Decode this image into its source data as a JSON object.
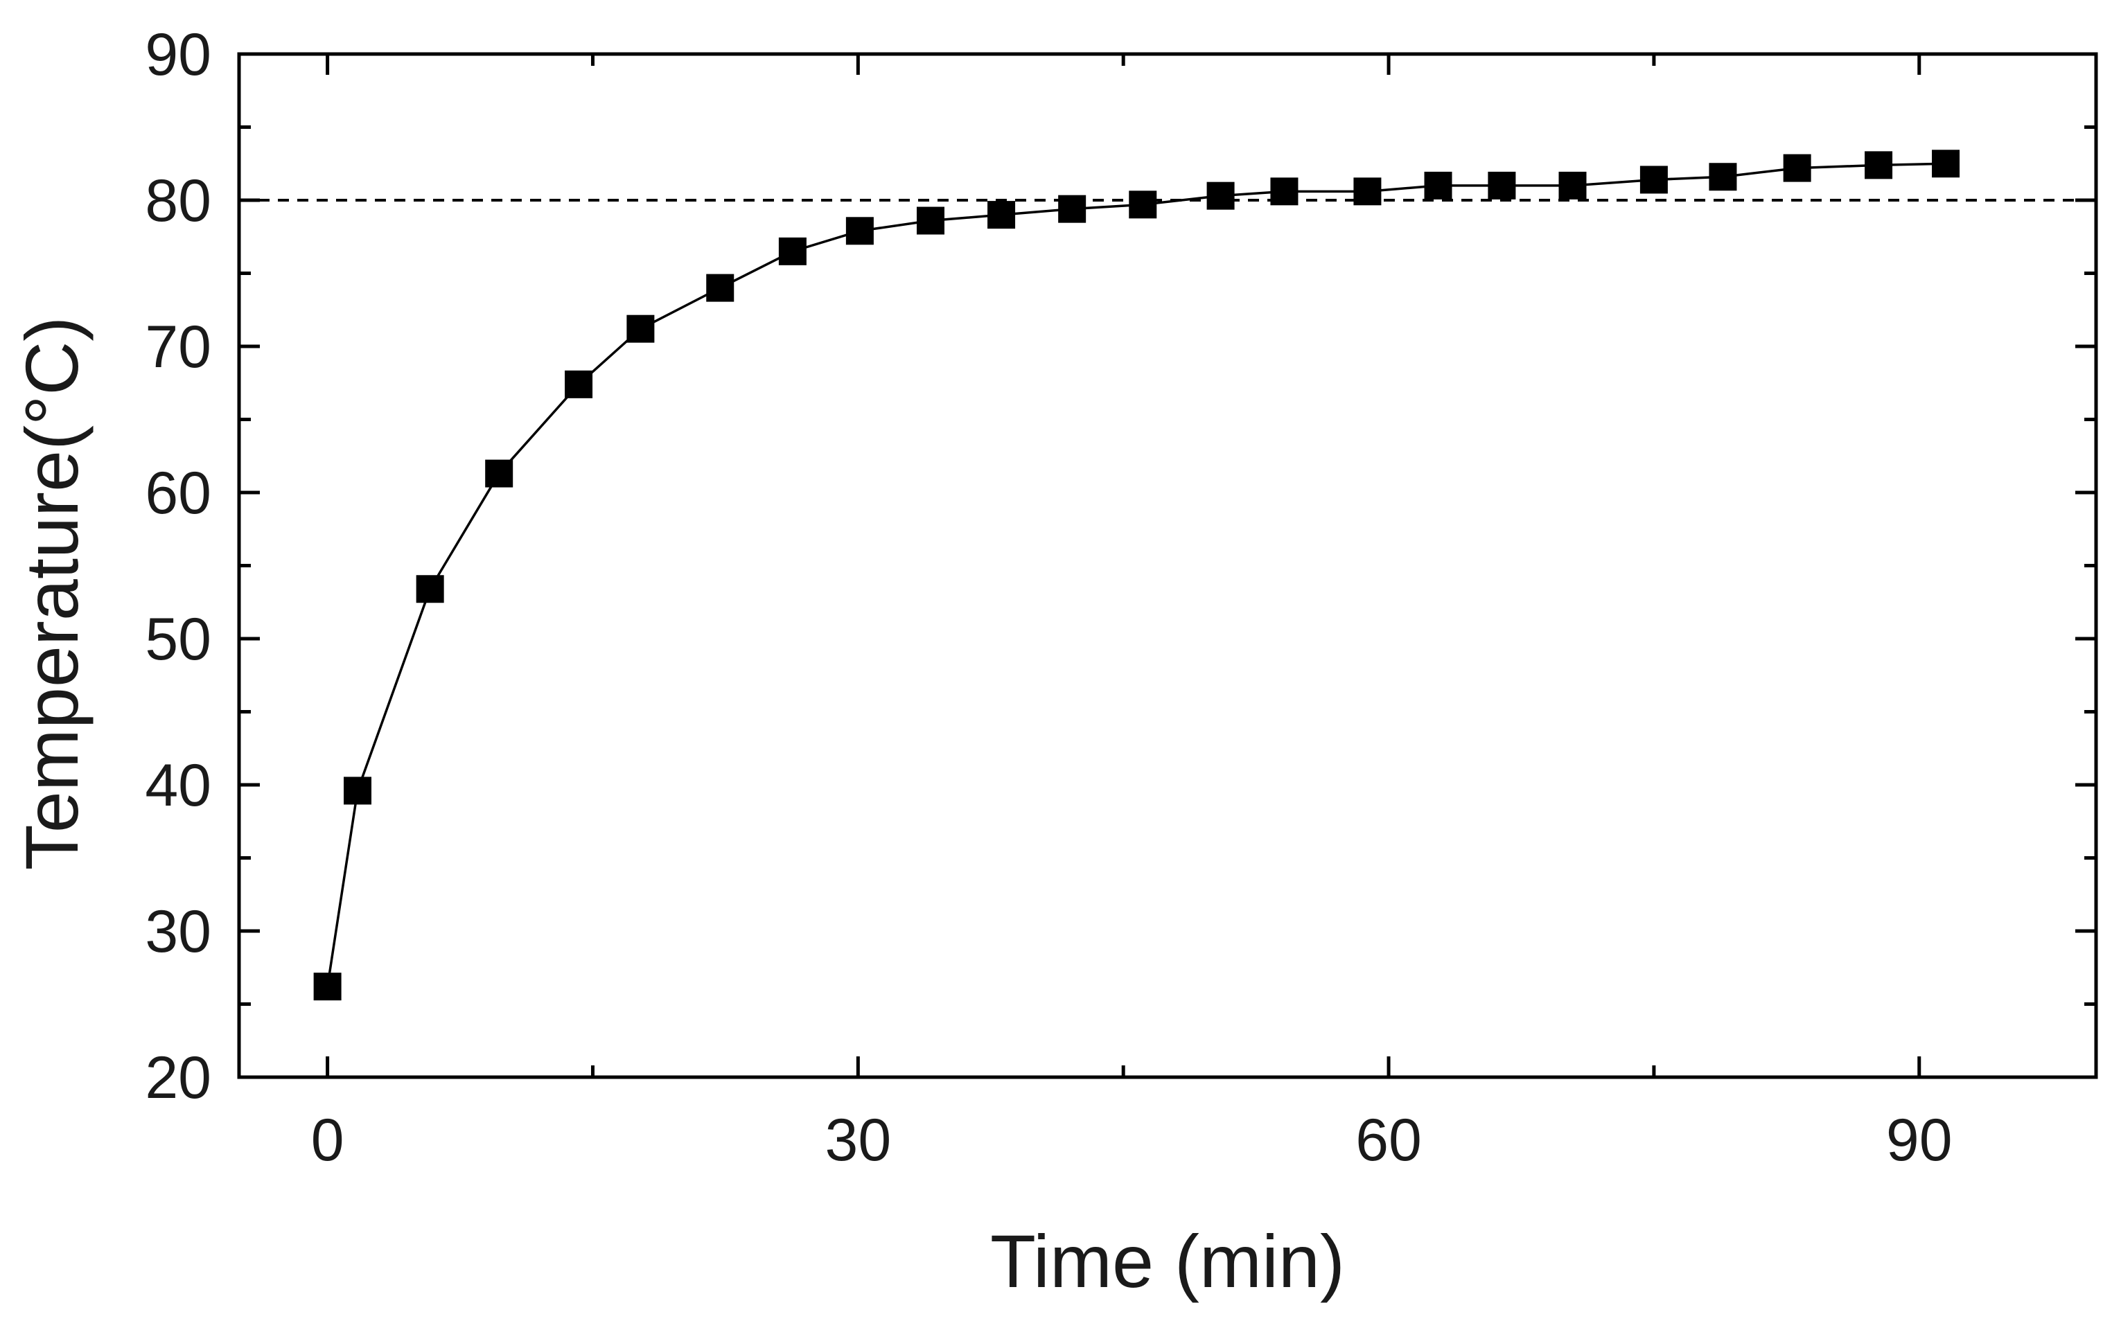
{
  "chart_data": {
    "type": "line",
    "title": "",
    "xlabel": "Time (min)",
    "ylabel": "Temperature(°C)",
    "xlim": [
      -5,
      100
    ],
    "ylim": [
      20,
      90
    ],
    "x_ticks": [
      0,
      30,
      60,
      90
    ],
    "y_ticks": [
      20,
      30,
      40,
      50,
      60,
      70,
      80,
      90
    ],
    "grid": false,
    "legend": "none",
    "reference_line": {
      "y": 80,
      "style": "dashed"
    },
    "marker": "square",
    "colors": {
      "series": "#000000",
      "axes": "#000000",
      "reference": "#000000"
    },
    "series": [
      {
        "x": [
          0,
          1.7,
          5.8,
          9.7,
          14.2,
          17.7,
          22.2,
          26.3,
          30.1,
          34.1,
          38.1,
          42.1,
          46.1,
          50.5,
          54.1,
          58.8,
          62.8,
          66.4,
          70.4,
          75.0,
          78.9,
          83.1,
          87.7,
          91.5
        ],
        "y": [
          26.2,
          39.6,
          53.4,
          61.3,
          67.4,
          71.2,
          74.0,
          76.5,
          77.9,
          78.6,
          79.0,
          79.4,
          79.7,
          80.3,
          80.6,
          80.6,
          81.0,
          81.0,
          81.0,
          81.4,
          81.6,
          82.2,
          82.4,
          82.5
        ]
      }
    ]
  }
}
